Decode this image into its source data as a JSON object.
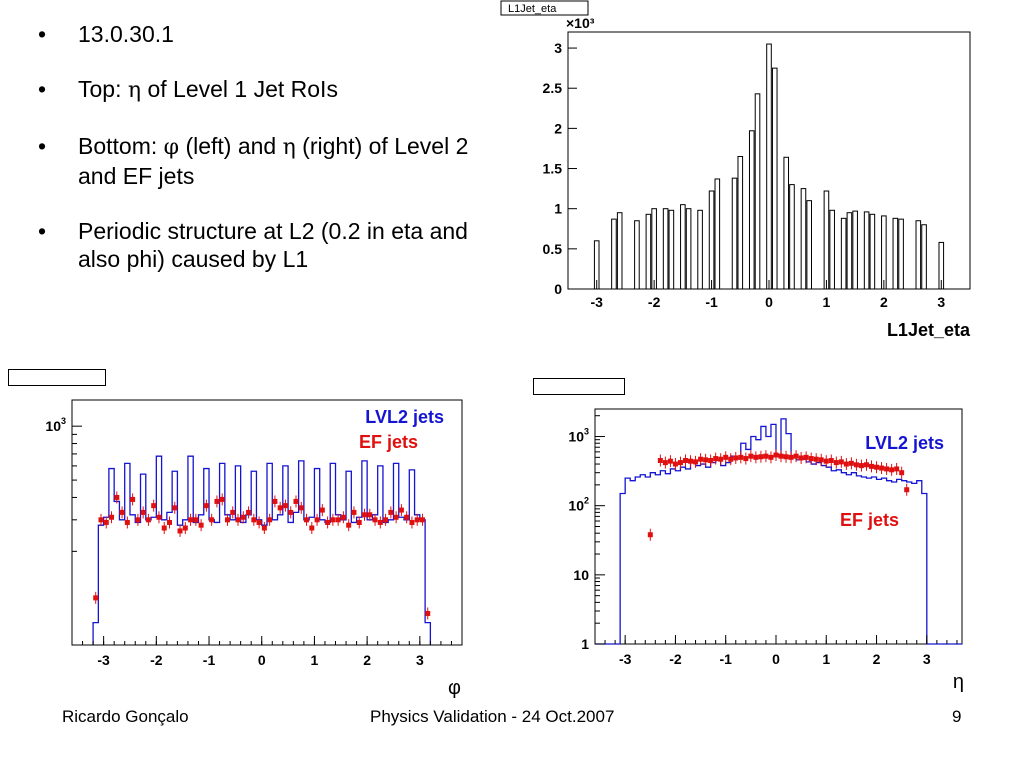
{
  "bullets": {
    "b1": "13.0.30.1",
    "b2_pre": "Top: ",
    "b2_sym": "η",
    "b2_post": " of Level 1 Jet RoIs",
    "b3_pre": "Bottom: ",
    "b3_sym1": "φ",
    "b3_mid": " (left) and ",
    "b3_sym2": "η",
    "b3_post": " (right) of Level 2 and EF jets",
    "b4": "Periodic structure at L2 (0.2 in eta and also phi) caused by L1"
  },
  "footer": {
    "author": "Ricardo Gonçalo",
    "title": "Physics Validation - 24 Oct.2007",
    "page": "9"
  },
  "colors": {
    "lvl2": "#1414d2",
    "ef": "#e01010",
    "frame": "#000000"
  },
  "chart_data": [
    {
      "id": "top",
      "type": "bar",
      "title": "L1Jet_eta",
      "xlabel": "L1Jet_eta",
      "ylabel": "",
      "y_multiplier": "×10³",
      "xlim": [
        -3.5,
        3.5
      ],
      "ylim": [
        0,
        3.2
      ],
      "xticks": [
        -3,
        -2,
        -1,
        0,
        1,
        2,
        3
      ],
      "yticks": [
        0,
        0.5,
        1,
        1.5,
        2,
        2.5,
        3
      ],
      "ytick_labels": [
        "0",
        "0.5",
        "1",
        "1.5",
        "2",
        "2.5",
        "3"
      ],
      "bin_width": 0.1,
      "centers": [
        -3.0,
        -2.7,
        -2.6,
        -2.3,
        -2.1,
        -2.0,
        -1.8,
        -1.7,
        -1.5,
        -1.4,
        -1.2,
        -1.0,
        -0.9,
        -0.6,
        -0.5,
        -0.3,
        -0.2,
        0.0,
        0.1,
        0.3,
        0.4,
        0.6,
        0.7,
        1.0,
        1.1,
        1.3,
        1.4,
        1.5,
        1.7,
        1.8,
        2.0,
        2.2,
        2.3,
        2.6,
        2.7,
        3.0
      ],
      "values": [
        0.6,
        0.87,
        0.95,
        0.85,
        0.93,
        1.0,
        1.0,
        0.98,
        1.05,
        1.0,
        0.98,
        1.22,
        1.37,
        1.38,
        1.65,
        1.97,
        2.43,
        3.05,
        2.75,
        1.64,
        1.3,
        1.25,
        1.1,
        1.22,
        0.98,
        0.88,
        0.95,
        0.97,
        0.96,
        0.93,
        0.91,
        0.88,
        0.87,
        0.85,
        0.8,
        0.58
      ]
    },
    {
      "id": "bottom-left",
      "type": "line",
      "xlabel": "φ",
      "log_y": true,
      "xlim": [
        -3.6,
        3.8
      ],
      "ylim": [
        60,
        1400
      ],
      "xticks": [
        -3,
        -2,
        -1,
        0,
        1,
        2,
        3
      ],
      "ytick_labels": [
        "10³"
      ],
      "legend": [
        "LVL2 jets",
        "EF jets"
      ],
      "legend_position": "top-right",
      "series": [
        {
          "name": "LVL2 jets",
          "style": "step",
          "x": [
            -3.15,
            -3.05,
            -2.95,
            -2.85,
            -2.75,
            -2.65,
            -2.55,
            -2.45,
            -2.35,
            -2.25,
            -2.15,
            -2.05,
            -1.95,
            -1.85,
            -1.75,
            -1.65,
            -1.55,
            -1.45,
            -1.35,
            -1.25,
            -1.15,
            -1.05,
            -0.95,
            -0.85,
            -0.75,
            -0.65,
            -0.55,
            -0.45,
            -0.35,
            -0.25,
            -0.15,
            -0.05,
            0.05,
            0.15,
            0.25,
            0.35,
            0.45,
            0.55,
            0.65,
            0.75,
            0.85,
            0.95,
            1.05,
            1.15,
            1.25,
            1.35,
            1.45,
            1.55,
            1.65,
            1.75,
            1.85,
            1.95,
            2.05,
            2.15,
            2.25,
            2.35,
            2.45,
            2.55,
            2.65,
            2.75,
            2.85,
            2.95,
            3.05,
            3.15
          ],
          "values": [
            80,
            280,
            310,
            580,
            380,
            300,
            620,
            320,
            290,
            540,
            300,
            310,
            680,
            300,
            330,
            560,
            280,
            300,
            680,
            290,
            320,
            580,
            300,
            290,
            620,
            320,
            300,
            600,
            290,
            320,
            560,
            300,
            280,
            620,
            300,
            320,
            600,
            290,
            330,
            640,
            300,
            310,
            580,
            300,
            290,
            620,
            320,
            300,
            560,
            290,
            310,
            640,
            300,
            320,
            600,
            290,
            300,
            620,
            310,
            300,
            570,
            320,
            300,
            80
          ]
        },
        {
          "name": "EF jets",
          "style": "points",
          "x": [
            -3.15,
            -3.05,
            -2.95,
            -2.85,
            -2.75,
            -2.65,
            -2.55,
            -2.45,
            -2.35,
            -2.25,
            -2.15,
            -2.05,
            -1.95,
            -1.85,
            -1.75,
            -1.65,
            -1.55,
            -1.45,
            -1.35,
            -1.25,
            -1.15,
            -1.05,
            -0.95,
            -0.85,
            -0.75,
            -0.65,
            -0.55,
            -0.45,
            -0.35,
            -0.25,
            -0.15,
            -0.05,
            0.05,
            0.15,
            0.25,
            0.35,
            0.45,
            0.55,
            0.65,
            0.75,
            0.85,
            0.95,
            1.05,
            1.15,
            1.25,
            1.35,
            1.45,
            1.55,
            1.65,
            1.75,
            1.85,
            1.95,
            2.05,
            2.15,
            2.25,
            2.35,
            2.45,
            2.55,
            2.65,
            2.75,
            2.85,
            2.95,
            3.05,
            3.15
          ],
          "values": [
            110,
            300,
            290,
            310,
            400,
            330,
            290,
            390,
            300,
            330,
            300,
            360,
            310,
            270,
            290,
            350,
            260,
            270,
            300,
            300,
            280,
            360,
            300,
            380,
            390,
            300,
            330,
            300,
            310,
            330,
            300,
            290,
            270,
            300,
            380,
            350,
            360,
            330,
            380,
            350,
            300,
            270,
            300,
            340,
            290,
            300,
            300,
            310,
            280,
            330,
            290,
            320,
            320,
            300,
            290,
            300,
            330,
            310,
            340,
            310,
            290,
            300,
            300,
            90
          ]
        }
      ]
    },
    {
      "id": "bottom-right",
      "type": "line",
      "xlabel": "η",
      "log_y": true,
      "xlim": [
        -3.6,
        3.7
      ],
      "ylim": [
        1,
        2500
      ],
      "xticks": [
        -3,
        -2,
        -1,
        0,
        1,
        2,
        3
      ],
      "ytick_labels": [
        "1",
        "10",
        "10²",
        "10³"
      ],
      "legend": [
        "LVL2 jets",
        "EF jets"
      ],
      "series": [
        {
          "name": "LVL2 jets",
          "style": "step",
          "x": [
            -3.55,
            -3.45,
            -3.35,
            -3.25,
            -3.15,
            -3.05,
            -2.95,
            -2.85,
            -2.75,
            -2.65,
            -2.55,
            -2.45,
            -2.35,
            -2.25,
            -2.15,
            -2.05,
            -1.95,
            -1.85,
            -1.75,
            -1.65,
            -1.55,
            -1.45,
            -1.35,
            -1.25,
            -1.15,
            -1.05,
            -0.95,
            -0.85,
            -0.75,
            -0.65,
            -0.55,
            -0.45,
            -0.35,
            -0.25,
            -0.15,
            -0.05,
            0.05,
            0.15,
            0.25,
            0.35,
            0.45,
            0.55,
            0.65,
            0.75,
            0.85,
            0.95,
            1.05,
            1.15,
            1.25,
            1.35,
            1.45,
            1.55,
            1.65,
            1.75,
            1.85,
            1.95,
            2.05,
            2.15,
            2.25,
            2.35,
            2.45,
            2.55,
            2.65,
            2.75,
            2.85,
            2.95,
            3.05,
            3.15,
            3.25,
            3.35,
            3.45,
            3.55,
            3.65
          ],
          "values": [
            1,
            1,
            1,
            1,
            1,
            150,
            250,
            230,
            260,
            280,
            260,
            300,
            280,
            320,
            290,
            340,
            320,
            360,
            340,
            420,
            380,
            400,
            360,
            420,
            450,
            380,
            420,
            520,
            480,
            800,
            650,
            1000,
            900,
            1400,
            1000,
            1500,
            550,
            1800,
            1100,
            500,
            460,
            470,
            430,
            400,
            420,
            380,
            360,
            320,
            330,
            300,
            280,
            300,
            270,
            260,
            250,
            260,
            240,
            250,
            230,
            220,
            240,
            230,
            220,
            210,
            230,
            150,
            1,
            1,
            1,
            1,
            1,
            1,
            1
          ]
        },
        {
          "name": "EF jets",
          "style": "points",
          "x": [
            -2.5,
            -2.3,
            -2.2,
            -2.1,
            -2.0,
            -1.9,
            -1.8,
            -1.7,
            -1.6,
            -1.5,
            -1.4,
            -1.3,
            -1.2,
            -1.1,
            -1.0,
            -0.9,
            -0.8,
            -0.7,
            -0.6,
            -0.5,
            -0.4,
            -0.3,
            -0.2,
            -0.1,
            0.0,
            0.1,
            0.2,
            0.3,
            0.4,
            0.5,
            0.6,
            0.7,
            0.8,
            0.9,
            1.0,
            1.1,
            1.2,
            1.3,
            1.4,
            1.5,
            1.6,
            1.7,
            1.8,
            1.9,
            2.0,
            2.1,
            2.2,
            2.3,
            2.4,
            2.5,
            2.6
          ],
          "values": [
            38,
            450,
            420,
            440,
            400,
            420,
            450,
            440,
            430,
            470,
            460,
            450,
            480,
            470,
            500,
            470,
            490,
            500,
            480,
            520,
            500,
            510,
            520,
            500,
            540,
            520,
            510,
            500,
            520,
            490,
            500,
            480,
            470,
            460,
            440,
            450,
            420,
            430,
            400,
            410,
            390,
            380,
            390,
            370,
            360,
            350,
            340,
            330,
            340,
            300,
            170
          ]
        }
      ]
    }
  ]
}
